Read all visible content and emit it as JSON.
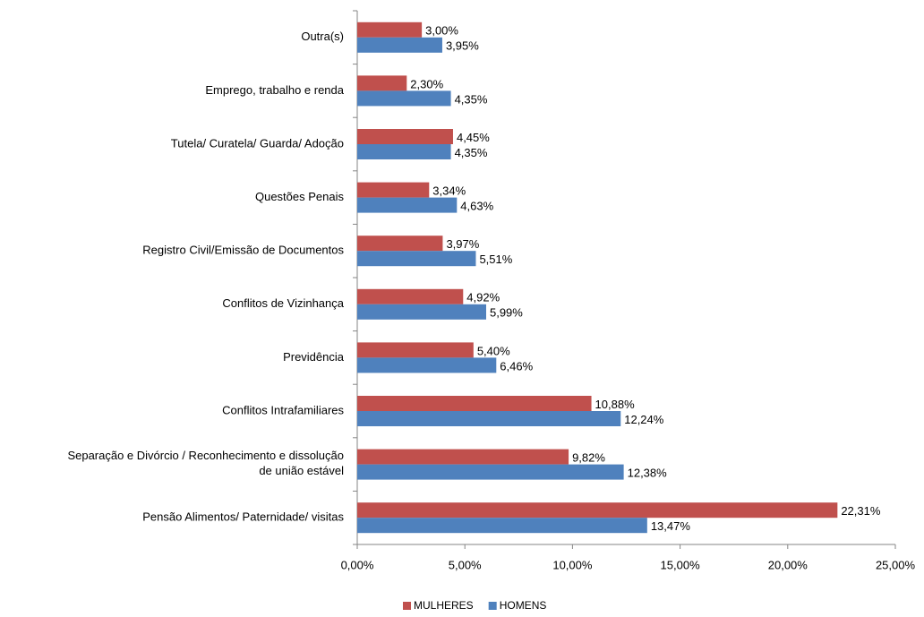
{
  "chart_data": {
    "type": "hbar",
    "categories": [
      "Outra(s)",
      "Emprego, trabalho e renda",
      "Tutela/ Curatela/ Guarda/ Adoção",
      "Questões Penais",
      "Registro Civil/Emissão de Documentos",
      "Conflitos de Vizinhança",
      "Previdência",
      "Conflitos Intrafamiliares",
      "Separação e Divórcio / Reconhecimento e dissolução\nde união estável",
      "Pensão Alimentos/ Paternidade/ visitas"
    ],
    "series": [
      {
        "name": "MULHERES",
        "color": "#c0504d",
        "values": [
          3.0,
          2.3,
          4.45,
          3.34,
          3.97,
          4.92,
          5.4,
          10.88,
          9.82,
          22.31
        ],
        "value_labels": [
          "3,00%",
          "2,30%",
          "4,45%",
          "3,34%",
          "3,97%",
          "4,92%",
          "5,40%",
          "10,88%",
          "9,82%",
          "22,31%"
        ]
      },
      {
        "name": "HOMENS",
        "color": "#4f81bd",
        "values": [
          3.95,
          4.35,
          4.35,
          4.63,
          5.51,
          5.99,
          6.46,
          12.24,
          12.38,
          13.47
        ],
        "value_labels": [
          "3,95%",
          "4,35%",
          "4,35%",
          "4,63%",
          "5,51%",
          "5,99%",
          "6,46%",
          "12,24%",
          "12,38%",
          "13,47%"
        ]
      }
    ],
    "xlim": [
      0,
      25
    ],
    "xticks": [
      {
        "value": 0,
        "label": "0,00%"
      },
      {
        "value": 5,
        "label": "5,00%"
      },
      {
        "value": 10,
        "label": "10,00%"
      },
      {
        "value": 15,
        "label": "15,00%"
      },
      {
        "value": 20,
        "label": "20,00%"
      },
      {
        "value": 25,
        "label": "25,00%"
      }
    ],
    "legend": "bottom"
  }
}
